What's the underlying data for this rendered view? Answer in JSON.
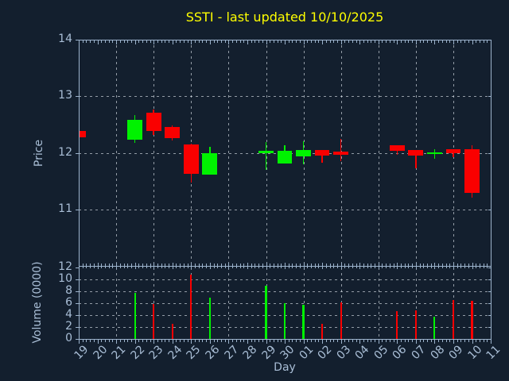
{
  "window": {
    "title": "SSTI - last updated 10/10/2025"
  },
  "chart_data": {
    "type": "candlestick",
    "title": "SSTI - last updated 10/10/2025",
    "xlabel": "Day",
    "x_categories": [
      "19",
      "20",
      "21",
      "22",
      "23",
      "24",
      "25",
      "26",
      "27",
      "28",
      "29",
      "30",
      "01",
      "02",
      "03",
      "04",
      "05",
      "06",
      "07",
      "08",
      "09",
      "10",
      "11"
    ],
    "grid": true,
    "legend": "none",
    "colors": {
      "up": "#00f200",
      "down": "#fa0000",
      "title": "#ffff00",
      "axis": "#9cb3cc",
      "tick_label": "#a9bed6",
      "background": "#131f2e"
    },
    "panels": {
      "price": {
        "ylabel": "Price",
        "ylim": [
          10,
          14
        ],
        "yticks": [
          "11",
          "12",
          "13",
          "14"
        ],
        "grid_lines": [
          11,
          12,
          13
        ]
      },
      "volume": {
        "ylabel": "Volume (0000)",
        "ylim": [
          0,
          12.3
        ],
        "yticks": [
          "0",
          "2",
          "4",
          "6",
          "8",
          "10",
          "12"
        ],
        "grid_lines": [
          2,
          4,
          6,
          8,
          10
        ]
      }
    },
    "ohlc": [
      {
        "day": "19",
        "open": 12.39,
        "high": 12.39,
        "low": 12.27,
        "close": 12.27,
        "volume": null
      },
      {
        "day": "22",
        "open": 12.23,
        "high": 12.67,
        "low": 12.17,
        "close": 12.59,
        "volume": 7.7
      },
      {
        "day": "23",
        "open": 12.71,
        "high": 12.76,
        "low": 12.32,
        "close": 12.39,
        "volume": 5.9
      },
      {
        "day": "24",
        "open": 12.46,
        "high": 12.49,
        "low": 12.21,
        "close": 12.26,
        "volume": 2.6
      },
      {
        "day": "25",
        "open": 12.15,
        "high": 12.16,
        "low": 11.47,
        "close": 11.63,
        "volume": 10.8
      },
      {
        "day": "26",
        "open": 11.62,
        "high": 12.1,
        "low": 11.62,
        "close": 11.99,
        "volume": 6.9
      },
      {
        "day": "29",
        "open": 11.99,
        "high": 12.19,
        "low": 11.7,
        "close": 12.03,
        "volume": 9.0
      },
      {
        "day": "30",
        "open": 11.81,
        "high": 12.14,
        "low": 11.81,
        "close": 12.04,
        "volume": 6.0
      },
      {
        "day": "01",
        "open": 11.93,
        "high": 12.2,
        "low": 11.8,
        "close": 12.05,
        "volume": 5.7
      },
      {
        "day": "02",
        "open": 12.05,
        "high": 12.05,
        "low": 11.83,
        "close": 11.95,
        "volume": 2.5
      },
      {
        "day": "03",
        "open": 12.02,
        "high": 12.24,
        "low": 11.85,
        "close": 11.97,
        "volume": 6.2
      },
      {
        "day": "06",
        "open": 12.13,
        "high": 12.13,
        "low": 11.97,
        "close": 12.03,
        "volume": 4.7
      },
      {
        "day": "07",
        "open": 12.05,
        "high": 12.05,
        "low": 11.72,
        "close": 11.95,
        "volume": 4.8
      },
      {
        "day": "08",
        "open": 11.98,
        "high": 12.07,
        "low": 11.9,
        "close": 12.01,
        "volume": 3.8
      },
      {
        "day": "09",
        "open": 12.07,
        "high": 12.07,
        "low": 11.93,
        "close": 11.99,
        "volume": 6.6
      },
      {
        "day": "10",
        "open": 12.06,
        "high": 12.13,
        "low": 11.2,
        "close": 11.29,
        "volume": 6.4
      }
    ]
  }
}
